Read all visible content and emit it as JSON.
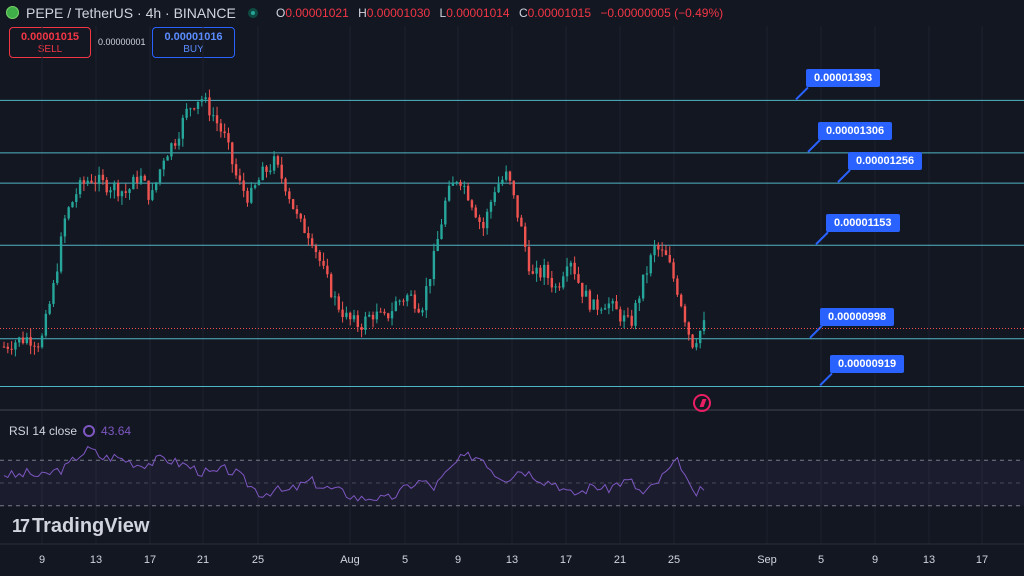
{
  "header": {
    "symbol": "PEPE / TetherUS · 4h · BINANCE",
    "ohlc": {
      "o_label": "O",
      "o": "0.00001021",
      "h_label": "H",
      "h": "0.00001030",
      "l_label": "L",
      "l": "0.00001014",
      "c_label": "C",
      "c": "0.00001015",
      "change": "−0.00000005 (−0.49%)"
    }
  },
  "trade": {
    "sell_price": "0.00001015",
    "sell_label": "SELL",
    "spread": "0.00000001",
    "buy_price": "0.00001016",
    "buy_label": "BUY"
  },
  "rsi": {
    "name": "RSI 14 close",
    "value": "43.64"
  },
  "logo": {
    "text": "TradingView"
  },
  "colors": {
    "up": "#26a69a",
    "down": "#ef5350",
    "level_line": "#4fb6c4",
    "flag": "#2962ff",
    "rsi": "#7e57c2",
    "background": "#131722"
  },
  "chart_data": {
    "type": "candlestick",
    "series": [
      {
        "name": "PEPE / TetherUS",
        "close_path": [
          9.85e-06,
          9.95e-06,
          1e-05,
          9.9e-06,
          1.08e-05,
          1.2e-05,
          1.245e-05,
          1.265e-05,
          1.255e-05,
          1.25e-05,
          1.24e-05,
          1.27e-05,
          1.23e-05,
          1.3e-05,
          1.33e-05,
          1.38e-05,
          1.4e-05,
          1.37e-05,
          1.33e-05,
          1.26e-05,
          1.23e-05,
          1.27e-05,
          1.29e-05,
          1.25e-05,
          1.19e-05,
          1.17e-05,
          1.11e-05,
          1.06e-05,
          1.03e-05,
          1.02e-05,
          1.04e-05,
          1.03e-05,
          1.06e-05,
          1.07e-05,
          1.05e-05,
          1.13e-05,
          1.23e-05,
          1.27e-05,
          1.23e-05,
          1.18e-05,
          1.25e-05,
          1.27e-05,
          1.19e-05,
          1.1e-05,
          1.11e-05,
          1.08e-05,
          1.14e-05,
          1.08e-05,
          1.05e-05,
          1.06e-05,
          1.04e-05,
          1.02e-05,
          1.09e-05,
          1.15e-05,
          1.13e-05,
          1.07e-05,
          9.9e-06,
          1.02e-05
        ]
      },
      {
        "name": "RSI 14",
        "values": [
          58,
          56,
          59,
          55,
          60,
          63,
          74,
          80,
          72,
          73,
          70,
          66,
          68,
          72,
          68,
          65,
          60,
          58,
          62,
          58,
          48,
          40,
          44,
          42,
          47,
          52,
          46,
          44,
          40,
          36,
          38,
          35,
          40,
          48,
          52,
          46,
          58,
          70,
          74,
          72,
          58,
          54,
          62,
          58,
          52,
          50,
          40,
          42,
          48,
          44,
          50,
          52,
          40,
          48,
          60,
          70,
          40,
          43.64
        ]
      }
    ],
    "horizontal_levels": [
      1.393e-05,
      1.306e-05,
      1.256e-05,
      1.153e-05,
      9.98e-06,
      9.19e-06
    ],
    "last_price": 1.015e-05,
    "price_range": [
      8.8e-06,
      1.46e-05
    ],
    "rsi_range": [
      0,
      100
    ],
    "rsi_bands": [
      30,
      70
    ],
    "x_tick_labels": [
      "9",
      "13",
      "17",
      "21",
      "25",
      "Aug",
      "5",
      "9",
      "13",
      "17",
      "21",
      "25",
      "Sep",
      "5",
      "9",
      "13",
      "17"
    ]
  }
}
